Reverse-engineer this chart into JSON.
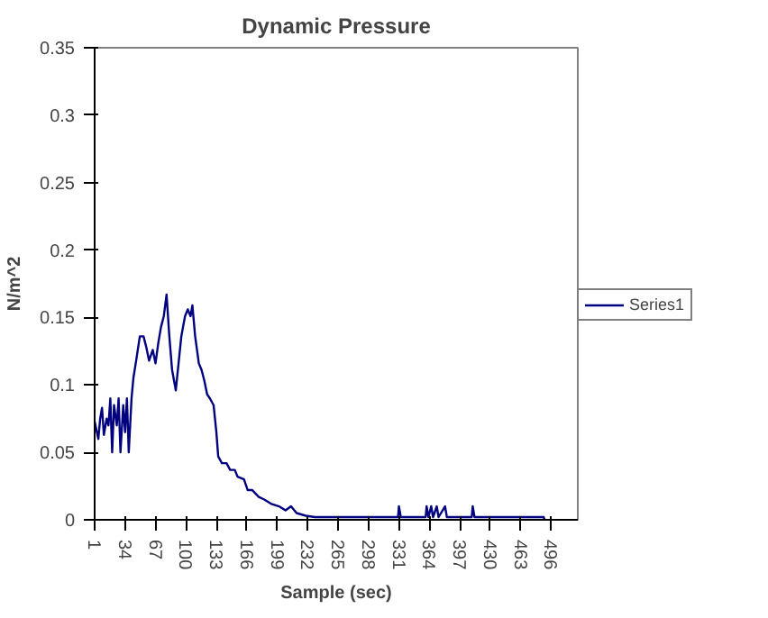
{
  "chart_data": {
    "type": "line",
    "title": "Dynamic Pressure",
    "xlabel": "Sample (sec)",
    "ylabel": "N/m^2",
    "xlim": [
      1,
      525
    ],
    "xticks": [
      1,
      34,
      67,
      100,
      133,
      166,
      199,
      232,
      265,
      298,
      331,
      364,
      397,
      430,
      463,
      496
    ],
    "ylim": [
      0,
      0.35
    ],
    "yticks": [
      0,
      0.05,
      0.1,
      0.15,
      0.2,
      0.25,
      0.3,
      0.35
    ],
    "grid": false,
    "legend": "right",
    "marker": "none",
    "line_style": "solid",
    "series": [
      {
        "name": "Series1",
        "color": "#000080",
        "x": [
          1,
          5,
          7,
          9,
          11,
          14,
          16,
          18,
          20,
          22,
          25,
          27,
          29,
          32,
          34,
          36,
          38,
          41,
          43,
          46,
          50,
          54,
          57,
          60,
          64,
          67,
          70,
          73,
          76,
          79,
          82,
          85,
          89,
          92,
          95,
          99,
          102,
          105,
          107,
          110,
          114,
          117,
          120,
          123,
          126,
          130,
          133,
          135,
          139,
          144,
          148,
          153,
          156,
          163,
          167,
          172,
          179,
          185,
          192,
          201,
          208,
          214,
          220,
          230,
          240,
          300,
          330,
          331,
          333,
          360,
          361,
          363,
          366,
          368,
          372,
          374,
          381,
          383,
          410,
          411,
          413,
          470,
          488,
          489
        ],
        "values": [
          0.073,
          0.06,
          0.075,
          0.083,
          0.063,
          0.075,
          0.07,
          0.09,
          0.05,
          0.085,
          0.07,
          0.09,
          0.05,
          0.085,
          0.065,
          0.09,
          0.05,
          0.09,
          0.105,
          0.118,
          0.136,
          0.136,
          0.128,
          0.118,
          0.126,
          0.116,
          0.131,
          0.143,
          0.151,
          0.167,
          0.136,
          0.111,
          0.096,
          0.116,
          0.136,
          0.151,
          0.156,
          0.151,
          0.159,
          0.136,
          0.116,
          0.111,
          0.103,
          0.093,
          0.09,
          0.085,
          0.065,
          0.047,
          0.042,
          0.042,
          0.037,
          0.037,
          0.032,
          0.03,
          0.022,
          0.022,
          0.017,
          0.015,
          0.012,
          0.01,
          0.007,
          0.01,
          0.005,
          0.003,
          0.002,
          0.002,
          0.002,
          0.01,
          0.002,
          0.002,
          0.01,
          0.002,
          0.01,
          0.002,
          0.01,
          0.002,
          0.01,
          0.002,
          0.002,
          0.01,
          0.002,
          0.002,
          0.002,
          0
        ]
      }
    ]
  }
}
